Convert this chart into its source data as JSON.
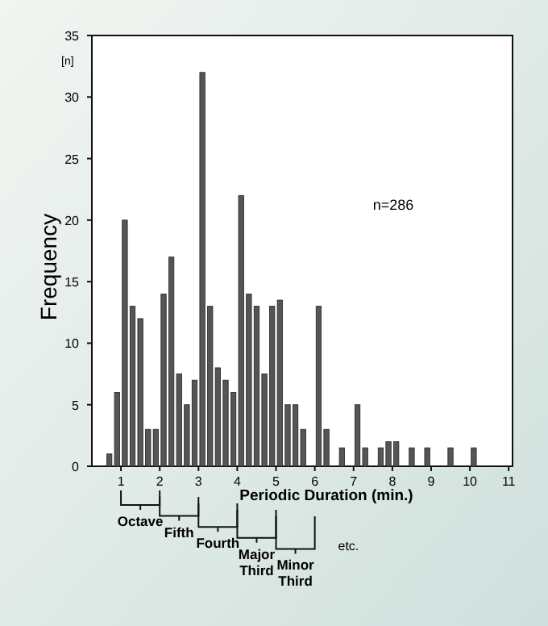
{
  "chart_data": {
    "type": "bar",
    "xlabel": "Periodic Duration (min.)",
    "ylabel": "Frequency",
    "x": [
      0.7,
      0.9,
      1.1,
      1.3,
      1.5,
      1.7,
      1.9,
      2.1,
      2.3,
      2.5,
      2.7,
      2.9,
      3.1,
      3.3,
      3.5,
      3.7,
      3.9,
      4.1,
      4.3,
      4.5,
      4.7,
      4.9,
      5.1,
      5.3,
      5.5,
      5.7,
      6.1,
      6.3,
      6.7,
      7.1,
      7.3,
      7.7,
      7.9,
      8.1,
      8.5,
      8.9,
      9.5,
      10.1
    ],
    "values": [
      1,
      6,
      20,
      13,
      12,
      3,
      3,
      14,
      17,
      7.5,
      5,
      7,
      32,
      13,
      8,
      7,
      6,
      22,
      14,
      13,
      7.5,
      13,
      13.5,
      5,
      5,
      3,
      13,
      3,
      1.5,
      5,
      1.5,
      1.5,
      2,
      2,
      1.5,
      1.5,
      1.5,
      1.5
    ],
    "color": "#555555",
    "xlim": [
      0.25,
      11.1
    ],
    "xticks": [
      1,
      2,
      3,
      4,
      5,
      6,
      7,
      8,
      9,
      10,
      11
    ],
    "ylim": [
      0,
      35
    ],
    "yticks": [
      0,
      5,
      10,
      15,
      20,
      25,
      30,
      35
    ],
    "annotations": [
      "Octave",
      "Fifth",
      "Fourth",
      "Major Third",
      "Minor Third",
      "etc.",
      "n=286",
      "[n]"
    ]
  }
}
